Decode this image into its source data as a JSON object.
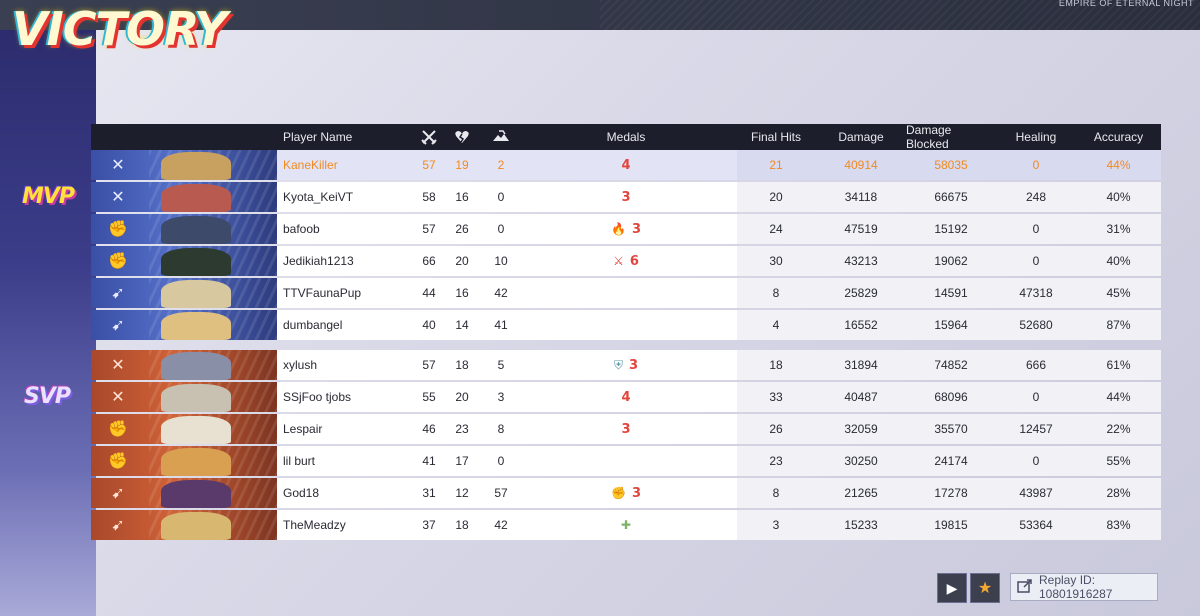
{
  "screen": {
    "result_title": "VICTORY",
    "map_name": "EMPIRE OF ETERNAL NIGHT",
    "mvp_label": "MVP",
    "svp_label": "SVP"
  },
  "colors": {
    "highlight_text": "#f08a24",
    "team_blue": "#3a4fa6",
    "team_red": "#c05a32",
    "medal_red": "#e2453e"
  },
  "columns": {
    "player_name": "Player Name",
    "kills_icon": "crossed-swords-icon",
    "deaths_icon": "broken-heart-icon",
    "assists_icon": "handshake-icon",
    "medals": "Medals",
    "final_hits": "Final Hits",
    "damage": "Damage",
    "damage_blocked": "Damage Blocked",
    "healing": "Healing",
    "accuracy": "Accuracy"
  },
  "team_blue": [
    {
      "name": "KaneKiller",
      "k": "57",
      "d": "19",
      "a": "2",
      "medals": [
        {
          "icon": "",
          "count": "4"
        }
      ],
      "final_hits": "21",
      "damage": "40914",
      "blocked": "58035",
      "healing": "0",
      "accuracy": "44%",
      "role": "duelist",
      "highlight": true
    },
    {
      "name": "Kyota_KeiVT",
      "k": "58",
      "d": "16",
      "a": "0",
      "medals": [
        {
          "icon": "",
          "count": "3"
        }
      ],
      "final_hits": "20",
      "damage": "34118",
      "blocked": "66675",
      "healing": "248",
      "accuracy": "40%",
      "role": "duelist"
    },
    {
      "name": "bafoob",
      "k": "57",
      "d": "26",
      "a": "0",
      "medals": [
        {
          "icon": "flame-medal-icon",
          "count": "3"
        }
      ],
      "final_hits": "24",
      "damage": "47519",
      "blocked": "15192",
      "healing": "0",
      "accuracy": "31%",
      "role": "vanguard"
    },
    {
      "name": "Jedikiah1213",
      "k": "66",
      "d": "20",
      "a": "10",
      "medals": [
        {
          "icon": "crossed-swords-medal-icon",
          "count": "6"
        }
      ],
      "final_hits": "30",
      "damage": "43213",
      "blocked": "19062",
      "healing": "0",
      "accuracy": "40%",
      "role": "vanguard"
    },
    {
      "name": "TTVFaunaPup",
      "k": "44",
      "d": "16",
      "a": "42",
      "medals": [],
      "final_hits": "8",
      "damage": "25829",
      "blocked": "14591",
      "healing": "47318",
      "accuracy": "45%",
      "role": "strategist"
    },
    {
      "name": "dumbangel",
      "k": "40",
      "d": "14",
      "a": "41",
      "medals": [],
      "final_hits": "4",
      "damage": "16552",
      "blocked": "15964",
      "healing": "52680",
      "accuracy": "87%",
      "role": "strategist"
    }
  ],
  "team_red": [
    {
      "name": "xylush",
      "k": "57",
      "d": "18",
      "a": "5",
      "medals": [
        {
          "icon": "shield-medal-icon",
          "count": "3"
        }
      ],
      "final_hits": "18",
      "damage": "31894",
      "blocked": "74852",
      "healing": "666",
      "accuracy": "61%",
      "role": "duelist"
    },
    {
      "name": "SSjFoo tjobs",
      "k": "55",
      "d": "20",
      "a": "3",
      "medals": [
        {
          "icon": "",
          "count": "4"
        }
      ],
      "final_hits": "33",
      "damage": "40487",
      "blocked": "68096",
      "healing": "0",
      "accuracy": "44%",
      "role": "duelist"
    },
    {
      "name": "Lespair",
      "k": "46",
      "d": "23",
      "a": "8",
      "medals": [
        {
          "icon": "",
          "count": "3"
        }
      ],
      "final_hits": "26",
      "damage": "32059",
      "blocked": "35570",
      "healing": "12457",
      "accuracy": "22%",
      "role": "vanguard"
    },
    {
      "name": "lil burt",
      "k": "41",
      "d": "17",
      "a": "0",
      "medals": [],
      "final_hits": "23",
      "damage": "30250",
      "blocked": "24174",
      "healing": "0",
      "accuracy": "55%",
      "role": "vanguard"
    },
    {
      "name": "God18",
      "k": "31",
      "d": "12",
      "a": "57",
      "medals": [
        {
          "icon": "fist-medal-icon",
          "count": "3"
        }
      ],
      "final_hits": "8",
      "damage": "21265",
      "blocked": "17278",
      "healing": "43987",
      "accuracy": "28%",
      "role": "strategist"
    },
    {
      "name": "TheMeadzy",
      "k": "37",
      "d": "18",
      "a": "42",
      "medals": [
        {
          "icon": "plus-medal-icon",
          "count": ""
        }
      ],
      "final_hits": "3",
      "damage": "15233",
      "blocked": "19815",
      "healing": "53364",
      "accuracy": "83%",
      "role": "strategist"
    }
  ],
  "footer": {
    "play_icon": "play-icon",
    "favorite_icon": "star-icon",
    "replay_icon": "share-icon",
    "replay_label": "Replay ID: 10801916287"
  }
}
